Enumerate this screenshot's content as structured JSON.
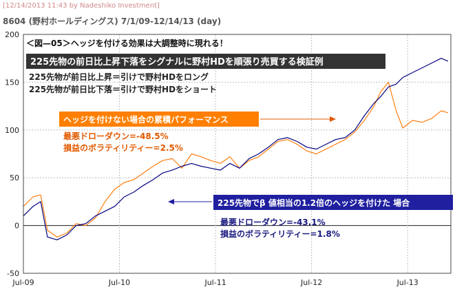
{
  "header": {
    "credit": "[12/14/2013 11:43 by Nadeshiko Investment]",
    "subtitle": "8604 (野村ホールディングス) 7/1/09-12/14/13 (day)"
  },
  "colors": {
    "hedged": "#000080",
    "unhedged": "#ff7f0e",
    "dark_box": "#333333",
    "orange_box": "#ff7f00",
    "blue_box": "#1f1fa0",
    "orange_text": "#e25a00",
    "blue_text": "#1a1a80"
  },
  "annotations": {
    "figure_title": "＜図—05＞ヘッジを付ける効果は大調整時に現れる！",
    "method_box": "225先物の前日比上昇下落をシグナルに野村HDを順張り売買する検証例",
    "rule_long": "225先物が前日比上昇＝引けで野村HDをロング",
    "rule_short": "225先物が前日比下落＝引けで野村HDをショート",
    "unhedged_box": "ヘッジを付けない場合の累積パフォーマンス",
    "unhedged_dd": "最悪ドローダウン=-48.5%",
    "unhedged_vol": "損益のボラティリティー=2.5%",
    "hedged_box": "225先物でβ 値相当の1.2倍のヘッジを付けた 場合",
    "hedged_dd": "最悪ドローダウン=-43.1%",
    "hedged_vol": "損益のボラティリティー=1.8%"
  },
  "chart_data": {
    "type": "line",
    "title": "",
    "xlabel": "",
    "ylabel": "",
    "ylim": [
      -50,
      200
    ],
    "yticks": [
      -50,
      0,
      50,
      100,
      150,
      200
    ],
    "x_tick_labels": [
      "Jul-09",
      "Jul-10",
      "Jul-11",
      "Jul-12",
      "Jul-13"
    ],
    "x_tick_positions": [
      2009.5,
      2010.5,
      2011.5,
      2012.5,
      2013.5
    ],
    "xlim": [
      2009.5,
      2013.95
    ],
    "grid": true,
    "series": [
      {
        "key": "unhedged",
        "x": [
          2009.5,
          2009.6,
          2009.68,
          2009.75,
          2009.85,
          2009.95,
          2010.05,
          2010.15,
          2010.25,
          2010.35,
          2010.45,
          2010.55,
          2010.65,
          2010.75,
          2010.85,
          2010.95,
          2011.05,
          2011.15,
          2011.25,
          2011.35,
          2011.45,
          2011.55,
          2011.65,
          2011.75,
          2011.85,
          2011.95,
          2012.05,
          2012.15,
          2012.25,
          2012.35,
          2012.45,
          2012.55,
          2012.65,
          2012.75,
          2012.85,
          2012.95,
          2013.05,
          2013.15,
          2013.22,
          2013.3,
          2013.38,
          2013.45,
          2013.55,
          2013.65,
          2013.75,
          2013.85,
          2013.92
        ],
        "values": [
          20,
          30,
          32,
          -5,
          -12,
          -8,
          2,
          0,
          8,
          25,
          38,
          45,
          48,
          55,
          62,
          68,
          70,
          60,
          75,
          72,
          68,
          65,
          72,
          60,
          68,
          72,
          80,
          88,
          90,
          85,
          78,
          75,
          80,
          85,
          90,
          98,
          110,
          125,
          140,
          150,
          120,
          102,
          110,
          108,
          112,
          120,
          118
        ]
      },
      {
        "key": "hedged",
        "x": [
          2009.5,
          2009.6,
          2009.68,
          2009.75,
          2009.85,
          2009.95,
          2010.05,
          2010.15,
          2010.25,
          2010.35,
          2010.45,
          2010.55,
          2010.65,
          2010.75,
          2010.85,
          2010.95,
          2011.05,
          2011.15,
          2011.25,
          2011.35,
          2011.45,
          2011.55,
          2011.65,
          2011.75,
          2011.85,
          2011.95,
          2012.05,
          2012.15,
          2012.25,
          2012.35,
          2012.45,
          2012.55,
          2012.65,
          2012.75,
          2012.85,
          2012.95,
          2013.05,
          2013.15,
          2013.22,
          2013.3,
          2013.38,
          2013.45,
          2013.55,
          2013.65,
          2013.75,
          2013.85,
          2013.92
        ],
        "values": [
          10,
          20,
          25,
          -12,
          -15,
          -10,
          0,
          2,
          10,
          15,
          20,
          30,
          35,
          42,
          48,
          55,
          58,
          62,
          65,
          62,
          60,
          58,
          65,
          60,
          70,
          75,
          82,
          90,
          92,
          88,
          82,
          80,
          85,
          90,
          92,
          100,
          115,
          128,
          135,
          145,
          148,
          155,
          160,
          165,
          170,
          175,
          172
        ]
      }
    ]
  }
}
